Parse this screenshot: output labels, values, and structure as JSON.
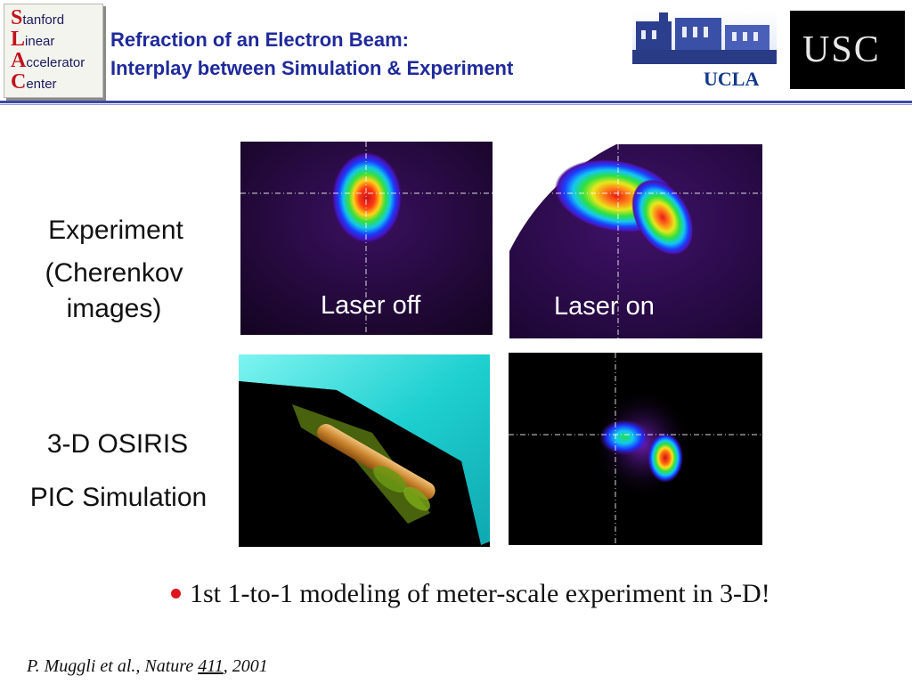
{
  "header": {
    "slac_logo": {
      "lines": [
        {
          "cap": "S",
          "rest": "tanford"
        },
        {
          "cap": "L",
          "rest": "inear"
        },
        {
          "cap": "A",
          "rest": "ccelerator"
        },
        {
          "cap": "C",
          "rest": "enter"
        }
      ]
    },
    "title_line1": "Refraction of an Electron Beam:",
    "title_line2": "Interplay between Simulation & Experiment",
    "ucla_label": "UCLA",
    "usc_label": "USC"
  },
  "rows": {
    "experiment": {
      "label_line1": "Experiment",
      "label_line2": "(Cherenkov",
      "label_line3": "images)",
      "left_caption": "Laser off",
      "right_caption": "Laser on"
    },
    "simulation": {
      "label_line1": "3-D OSIRIS",
      "label_line2": "PIC Simulation"
    }
  },
  "bullet": "1st 1-to-1 modeling of meter-scale experiment in 3-D!",
  "citation": {
    "prefix": "P. Muggli et al., Nature ",
    "volume": "411",
    "suffix": ", 2001"
  },
  "colors": {
    "title": "#1f2a9a",
    "accent_red": "#e0141e",
    "rule": "#3b48a8"
  }
}
